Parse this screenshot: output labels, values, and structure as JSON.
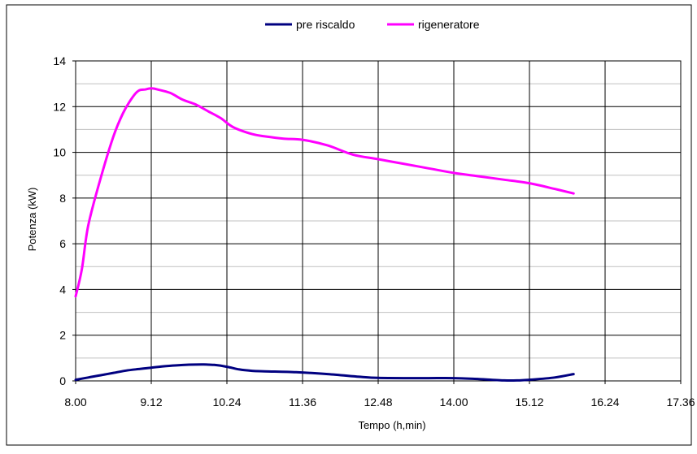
{
  "chart_data": {
    "type": "line",
    "xlabel": "Tempo (h,min)",
    "ylabel": "Potenza (kW)",
    "x_ticks": [
      "8.00",
      "9.12",
      "10.24",
      "11.36",
      "12.48",
      "14.00",
      "15.12",
      "16.24",
      "17.36"
    ],
    "y_ticks": [
      "0",
      "2",
      "4",
      "6",
      "8",
      "10",
      "12",
      "14"
    ],
    "xlim_hours": [
      8.0,
      17.6
    ],
    "ylim": [
      0,
      14
    ],
    "grid": true,
    "legend_position": "top-center",
    "series": [
      {
        "name": "pre riscaldo",
        "color": "#000080",
        "x_hours": [
          8.0,
          8.2,
          8.4,
          8.6,
          8.8,
          9.0,
          9.2,
          9.4,
          9.6,
          9.8,
          10.0,
          10.2,
          10.4,
          10.6,
          10.8,
          11.0,
          11.5,
          12.0,
          12.5,
          12.8,
          13.2,
          13.6,
          14.0,
          14.4,
          14.8,
          15.0,
          15.2,
          15.6,
          15.9
        ],
        "values": [
          0.05,
          0.15,
          0.25,
          0.35,
          0.45,
          0.52,
          0.58,
          0.64,
          0.68,
          0.71,
          0.72,
          0.7,
          0.62,
          0.5,
          0.44,
          0.42,
          0.38,
          0.3,
          0.18,
          0.13,
          0.12,
          0.12,
          0.12,
          0.08,
          0.02,
          0.02,
          0.05,
          0.15,
          0.3
        ]
      },
      {
        "name": "rigeneratore",
        "color": "#ff00ff",
        "x_hours": [
          8.0,
          8.1,
          8.2,
          8.4,
          8.6,
          8.75,
          8.9,
          9.0,
          9.1,
          9.2,
          9.3,
          9.5,
          9.7,
          9.9,
          10.1,
          10.3,
          10.5,
          10.8,
          11.0,
          11.3,
          11.6,
          12.0,
          12.4,
          12.8,
          13.2,
          13.6,
          14.0,
          14.4,
          14.8,
          15.2,
          15.6,
          15.9
        ],
        "values": [
          3.7,
          4.9,
          6.8,
          8.9,
          10.7,
          11.7,
          12.4,
          12.7,
          12.75,
          12.8,
          12.75,
          12.6,
          12.3,
          12.1,
          11.8,
          11.5,
          11.1,
          10.8,
          10.7,
          10.6,
          10.55,
          10.3,
          9.9,
          9.7,
          9.5,
          9.3,
          9.1,
          8.95,
          8.8,
          8.65,
          8.4,
          8.2
        ]
      }
    ]
  }
}
